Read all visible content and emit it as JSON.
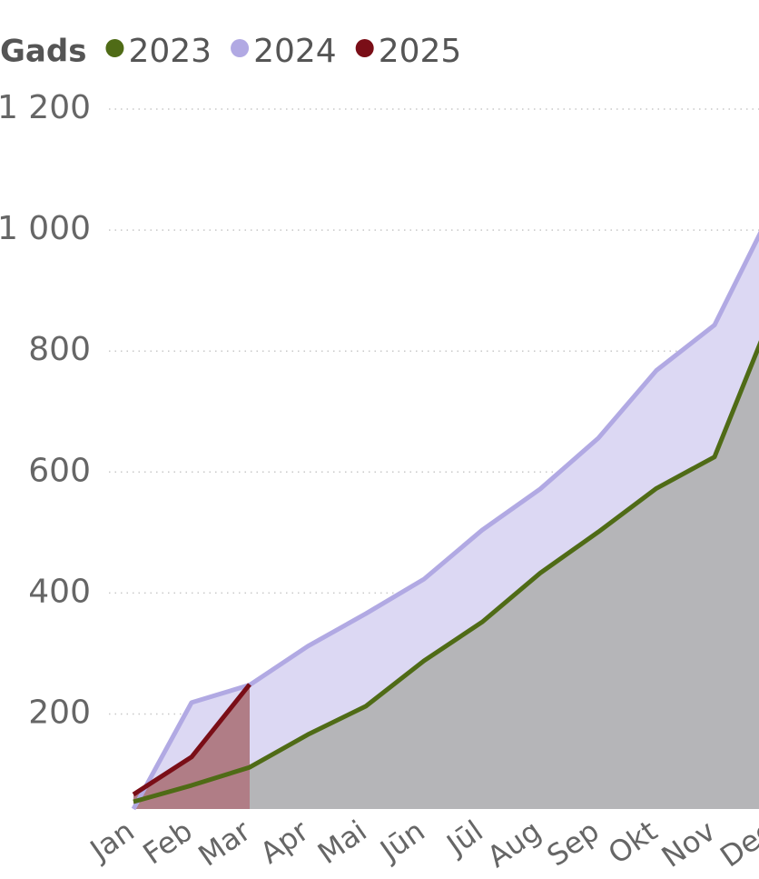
{
  "chart_data": {
    "type": "area",
    "legend_title": "Gads",
    "legend": "top-left",
    "grid": true,
    "categories": [
      "Jan",
      "Feb",
      "Mar",
      "Apr",
      "Mai",
      "Jūn",
      "Jūl",
      "Aug",
      "Sep",
      "Okt",
      "Nov",
      "Dec"
    ],
    "series": [
      {
        "name": "2023",
        "color": "#4f6b16",
        "area_color": "#b5b5b8",
        "values": [
          55,
          82,
          112,
          166,
          213,
          288,
          352,
          433,
          501,
          573,
          625,
          864
        ]
      },
      {
        "name": "2024",
        "color": "#b1a9e3",
        "area_color": "#dcd8f3",
        "values": [
          43,
          219,
          248,
          312,
          366,
          423,
          504,
          572,
          656,
          768,
          843,
          1036
        ]
      },
      {
        "name": "2025",
        "color": "#7a0e17",
        "area_color": "#b07d86",
        "values": [
          67,
          129,
          249,
          null,
          null,
          null,
          null,
          null,
          null,
          null,
          null,
          null
        ]
      }
    ],
    "ylim": [
      43,
      1200
    ],
    "yticks": [
      {
        "value": 200,
        "label": "200"
      },
      {
        "value": 400,
        "label": "400"
      },
      {
        "value": 600,
        "label": "600"
      },
      {
        "value": 800,
        "label": "800"
      },
      {
        "value": 1000,
        "label": "1 000"
      },
      {
        "value": 1200,
        "label": "1 200"
      }
    ]
  }
}
